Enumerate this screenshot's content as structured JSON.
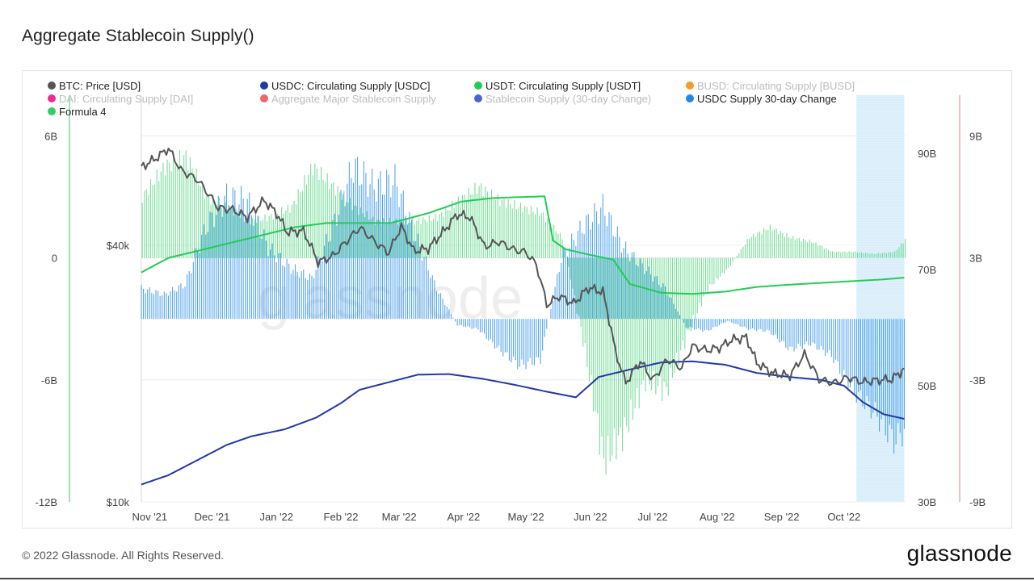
{
  "page": {
    "title": "Aggregate Stablecoin Supply()",
    "copyright": "© 2022 Glassnode. All Rights Reserved.",
    "brand": "glassnode",
    "watermark": "glassnode"
  },
  "chart_data": {
    "type": "line",
    "title": "Aggregate Stablecoin Supply()",
    "x_range": [
      "2021-10-28",
      "2022-10-31"
    ],
    "x_ticks": [
      "Nov '21",
      "Dec '21",
      "Jan '22",
      "Feb '22",
      "Mar '22",
      "Apr '22",
      "May '22",
      "Jun '22",
      "Jul '22",
      "Aug '22",
      "Sep '22",
      "Oct '22"
    ],
    "x_tick_dates": [
      "2021-11-01",
      "2021-12-01",
      "2022-01-01",
      "2022-02-01",
      "2022-03-01",
      "2022-04-01",
      "2022-05-01",
      "2022-06-01",
      "2022-07-01",
      "2022-08-01",
      "2022-09-01",
      "2022-10-01"
    ],
    "axes": {
      "change": {
        "range": [
          -12,
          8
        ],
        "ticks": [
          "6B",
          "0",
          "-6B",
          "-12B"
        ],
        "tick_values": [
          6,
          0,
          -6,
          -12
        ]
      },
      "price": {
        "scale": "log",
        "range": [
          10000,
          90000
        ],
        "ticks": [
          "$40k",
          "$10k"
        ],
        "tick_values": [
          40000,
          10000
        ]
      },
      "supply": {
        "range": [
          30,
          100
        ],
        "ticks": [
          "90B",
          "70B",
          "50B",
          "30B"
        ],
        "tick_values": [
          90,
          70,
          50,
          30
        ]
      },
      "usdc_change": {
        "range": [
          -9,
          11
        ],
        "ticks": [
          "9B",
          "3B",
          "-3B",
          "-9B"
        ],
        "tick_values": [
          9,
          3,
          -3,
          -9
        ]
      }
    },
    "legend": [
      {
        "name": "BTC: Price [USD]",
        "color": "#555555",
        "active": true
      },
      {
        "name": "USDC: Circulating Supply [USDC]",
        "color": "#2139a8",
        "active": true
      },
      {
        "name": "USDT: Circulating Supply [USDT]",
        "color": "#22cc55",
        "active": true
      },
      {
        "name": "BUSD: Circulating Supply [BUSD]",
        "color": "#f5900f",
        "active": false
      },
      {
        "name": "DAI: Circulating Supply [DAI]",
        "color": "#e8178a",
        "active": false
      },
      {
        "name": "Aggregate Major Stablecoin Supply",
        "color": "#ee5555",
        "active": false
      },
      {
        "name": "Stablecoin Supply (30-day Change)",
        "color": "#3355cc",
        "active": false
      },
      {
        "name": "USDC Supply 30-day Change",
        "color": "#1e88e5",
        "active": true
      },
      {
        "name": "Formula 4",
        "color": "#33cc66",
        "active": true
      }
    ],
    "series": [
      {
        "name": "BTC: Price [USD]",
        "axis": "price",
        "color": "#555555",
        "x": [
          "2021-10-28",
          "2021-11-04",
          "2021-11-10",
          "2021-11-16",
          "2021-11-24",
          "2021-12-04",
          "2021-12-11",
          "2021-12-18",
          "2021-12-26",
          "2022-01-01",
          "2022-01-06",
          "2022-01-14",
          "2022-01-21",
          "2022-01-28",
          "2022-02-05",
          "2022-02-10",
          "2022-02-18",
          "2022-02-24",
          "2022-03-02",
          "2022-03-08",
          "2022-03-15",
          "2022-03-22",
          "2022-03-29",
          "2022-04-04",
          "2022-04-11",
          "2022-04-18",
          "2022-04-25",
          "2022-05-01",
          "2022-05-06",
          "2022-05-11",
          "2022-05-17",
          "2022-05-24",
          "2022-05-31",
          "2022-06-07",
          "2022-06-13",
          "2022-06-18",
          "2022-06-25",
          "2022-07-01",
          "2022-07-08",
          "2022-07-15",
          "2022-07-20",
          "2022-07-27",
          "2022-08-02",
          "2022-08-08",
          "2022-08-15",
          "2022-08-20",
          "2022-08-28",
          "2022-09-05",
          "2022-09-12",
          "2022-09-19",
          "2022-09-26",
          "2022-10-03",
          "2022-10-10",
          "2022-10-17",
          "2022-10-24",
          "2022-10-30"
        ],
        "values": [
          61000,
          64000,
          67500,
          60000,
          57000,
          49000,
          48500,
          46500,
          51000,
          47600,
          43000,
          43200,
          36500,
          37700,
          41500,
          44000,
          40500,
          38400,
          44300,
          38800,
          39300,
          42900,
          47300,
          46600,
          39700,
          40800,
          39100,
          38500,
          36000,
          29000,
          30400,
          29200,
          31800,
          31100,
          22500,
          19000,
          21400,
          19300,
          21600,
          20600,
          23200,
          22700,
          23000,
          24000,
          24300,
          21200,
          20000,
          19800,
          22200,
          19400,
          19000,
          19600,
          19100,
          19300,
          19400,
          20500
        ]
      },
      {
        "name": "USDC: Circulating Supply [USDC]",
        "axis": "supply",
        "color": "#2139a8",
        "x": [
          "2021-10-28",
          "2021-11-10",
          "2021-11-24",
          "2021-12-08",
          "2021-12-20",
          "2022-01-05",
          "2022-01-20",
          "2022-02-01",
          "2022-02-10",
          "2022-02-24",
          "2022-03-10",
          "2022-03-25",
          "2022-04-10",
          "2022-04-25",
          "2022-05-12",
          "2022-05-25",
          "2022-06-05",
          "2022-06-20",
          "2022-07-05",
          "2022-07-20",
          "2022-08-05",
          "2022-08-20",
          "2022-09-05",
          "2022-09-20",
          "2022-10-01",
          "2022-10-10",
          "2022-10-20",
          "2022-10-30"
        ],
        "values": [
          33.0,
          34.6,
          37.2,
          39.8,
          41.3,
          42.5,
          44.5,
          47.0,
          49.3,
          50.6,
          51.9,
          52.0,
          51.2,
          50.2,
          48.9,
          48.0,
          51.5,
          52.8,
          54.0,
          54.2,
          53.6,
          52.2,
          51.5,
          51.0,
          50.0,
          47.2,
          45.1,
          44.3
        ]
      },
      {
        "name": "USDT: Circulating Supply [USDT]",
        "axis": "supply",
        "color": "#22cc55",
        "x": [
          "2021-10-28",
          "2021-11-10",
          "2021-11-24",
          "2021-12-10",
          "2021-12-25",
          "2022-01-10",
          "2022-01-25",
          "2022-02-10",
          "2022-02-25",
          "2022-03-15",
          "2022-03-31",
          "2022-04-15",
          "2022-05-01",
          "2022-05-10",
          "2022-05-14",
          "2022-05-20",
          "2022-06-01",
          "2022-06-12",
          "2022-06-20",
          "2022-07-05",
          "2022-07-20",
          "2022-08-05",
          "2022-08-20",
          "2022-09-05",
          "2022-09-20",
          "2022-10-05",
          "2022-10-20",
          "2022-10-30"
        ],
        "values": [
          69.5,
          72.0,
          73.2,
          74.6,
          75.9,
          77.3,
          78.0,
          78.0,
          78.0,
          79.7,
          81.7,
          82.3,
          82.5,
          82.6,
          75.0,
          73.5,
          72.5,
          71.7,
          67.5,
          66.0,
          65.8,
          66.2,
          67.0,
          67.4,
          67.7,
          68.0,
          68.3,
          68.6
        ]
      },
      {
        "name": "USDC Supply 30-day Change",
        "axis": "usdc_change",
        "color": "#1e88e5",
        "style": "bars",
        "x": [
          "2021-10-28",
          "2021-11-08",
          "2021-11-18",
          "2021-11-28",
          "2021-12-08",
          "2021-12-18",
          "2021-12-28",
          "2022-01-08",
          "2022-01-18",
          "2022-01-28",
          "2022-02-07",
          "2022-02-17",
          "2022-02-27",
          "2022-03-09",
          "2022-03-19",
          "2022-03-29",
          "2022-04-08",
          "2022-04-18",
          "2022-04-28",
          "2022-05-08",
          "2022-05-18",
          "2022-05-28",
          "2022-06-07",
          "2022-06-17",
          "2022-06-27",
          "2022-07-07",
          "2022-07-17",
          "2022-07-27",
          "2022-08-06",
          "2022-08-16",
          "2022-08-26",
          "2022-09-05",
          "2022-09-15",
          "2022-09-25",
          "2022-10-05",
          "2022-10-15",
          "2022-10-25",
          "2022-10-30"
        ],
        "values": [
          1.5,
          1.2,
          1.7,
          4.5,
          6.0,
          5.8,
          3.5,
          2.5,
          2.0,
          4.5,
          7.5,
          6.5,
          6.8,
          4.0,
          1.5,
          -0.3,
          -0.5,
          -1.5,
          -2.3,
          -2.0,
          3.0,
          4.5,
          5.5,
          3.5,
          2.5,
          1.5,
          -0.4,
          -0.6,
          -0.1,
          -0.5,
          -0.6,
          -1.5,
          -1.2,
          -1.8,
          -3.5,
          -4.5,
          -6.0,
          -5.5
        ]
      },
      {
        "name": "Formula 4",
        "axis": "change",
        "color": "#33cc66",
        "style": "bars",
        "x": [
          "2021-10-28",
          "2021-11-08",
          "2021-11-18",
          "2021-11-28",
          "2021-12-08",
          "2021-12-18",
          "2021-12-28",
          "2022-01-08",
          "2022-01-18",
          "2022-01-28",
          "2022-02-07",
          "2022-02-17",
          "2022-02-27",
          "2022-03-09",
          "2022-03-19",
          "2022-03-29",
          "2022-04-08",
          "2022-04-18",
          "2022-04-28",
          "2022-05-08",
          "2022-05-18",
          "2022-05-28",
          "2022-06-07",
          "2022-06-17",
          "2022-06-27",
          "2022-07-07",
          "2022-07-17",
          "2022-07-27",
          "2022-08-06",
          "2022-08-16",
          "2022-08-26",
          "2022-09-05",
          "2022-09-15",
          "2022-09-25",
          "2022-10-05",
          "2022-10-15",
          "2022-10-25",
          "2022-10-30"
        ],
        "values": [
          3.0,
          4.5,
          5.0,
          3.0,
          2.5,
          1.8,
          2.0,
          2.5,
          4.5,
          3.5,
          2.5,
          1.8,
          1.8,
          1.8,
          2.0,
          2.8,
          3.5,
          2.8,
          2.5,
          2.2,
          1.0,
          -4.0,
          -10.0,
          -8.5,
          -6.0,
          -6.5,
          -3.8,
          -1.5,
          -0.5,
          1.0,
          1.5,
          1.0,
          0.8,
          0.3,
          0.3,
          0.2,
          0.3,
          0.9
        ]
      }
    ],
    "projection_band": {
      "from": "2022-10-07",
      "to": "2022-10-30"
    },
    "grid": true
  }
}
